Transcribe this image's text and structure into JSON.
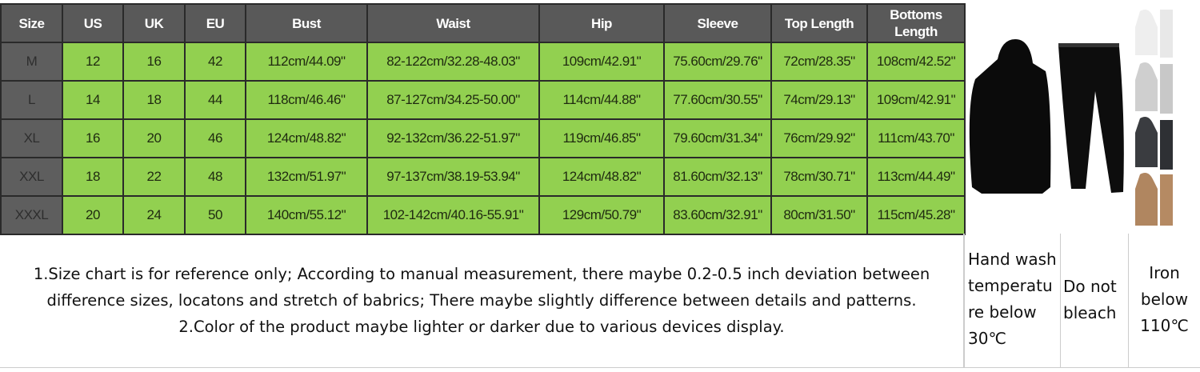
{
  "table": {
    "headers": [
      "Size",
      "US",
      "UK",
      "EU",
      "Bust",
      "Waist",
      "Hip",
      "Sleeve",
      "Top Length",
      "Bottoms Length"
    ],
    "rows": [
      [
        "M",
        "12",
        "16",
        "42",
        "112cm/44.09\"",
        "82-122cm/32.28-48.03\"",
        "109cm/42.91\"",
        "75.60cm/29.76\"",
        "72cm/28.35\"",
        "108cm/42.52\""
      ],
      [
        "L",
        "14",
        "18",
        "44",
        "118cm/46.46\"",
        "87-127cm/34.25-50.00\"",
        "114cm/44.88\"",
        "77.60cm/30.55\"",
        "74cm/29.13\"",
        "109cm/42.91\""
      ],
      [
        "XL",
        "16",
        "20",
        "46",
        "124cm/48.82\"",
        "92-132cm/36.22-51.97\"",
        "119cm/46.85\"",
        "79.60cm/31.34\"",
        "76cm/29.92\"",
        "111cm/43.70\""
      ],
      [
        "XXL",
        "18",
        "22",
        "48",
        "132cm/51.97\"",
        "97-137cm/38.19-53.94\"",
        "124cm/48.82\"",
        "81.60cm/32.13\"",
        "78cm/30.71\"",
        "113cm/44.49\""
      ],
      [
        "XXXL",
        "20",
        "24",
        "50",
        "140cm/55.12\"",
        "102-142cm/40.16-55.91\"",
        "129cm/50.79\"",
        "83.60cm/32.91\"",
        "80cm/31.50\"",
        "115cm/45.28\""
      ]
    ]
  },
  "colors": {
    "header": "#595959",
    "size_column": "#5e5e5e",
    "cells": "#92d050"
  },
  "product_image": {
    "main": "black hoodie and jogger pants",
    "variants": [
      "white",
      "light-grey",
      "dark-grey",
      "khaki"
    ]
  },
  "notes": [
    "1.Size chart is for reference only; According to manual measurement, there maybe 0.2-0.5 inch deviation between",
    "difference sizes, locatons and stretch of babrics; There maybe slightly difference between details and patterns.",
    "2.Color of the product maybe lighter or darker due to various devices display."
  ],
  "care": {
    "wash": "Hand wash temperatu re below 30℃",
    "bleach": "Do not bleach",
    "iron": "Iron below 110℃"
  }
}
